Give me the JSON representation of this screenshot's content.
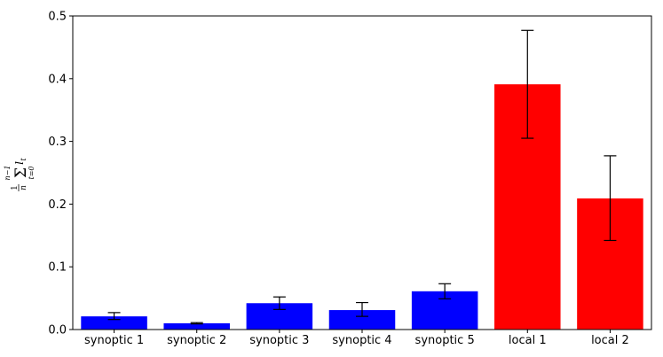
{
  "chart_data": {
    "type": "bar",
    "categories": [
      "synoptic 1",
      "synoptic 2",
      "synoptic 3",
      "synoptic 4",
      "synoptic 5",
      "local 1",
      "local 2"
    ],
    "values": [
      0.021,
      0.01,
      0.042,
      0.031,
      0.061,
      0.391,
      0.209
    ],
    "error_low": [
      0.016,
      0.009,
      0.032,
      0.021,
      0.049,
      0.305,
      0.142
    ],
    "error_high": [
      0.027,
      0.011,
      0.052,
      0.043,
      0.073,
      0.477,
      0.277
    ],
    "colors": [
      "#0000ff",
      "#0000ff",
      "#0000ff",
      "#0000ff",
      "#0000ff",
      "#ff0000",
      "#ff0000"
    ],
    "ylim": [
      0,
      0.5
    ],
    "yticks": [
      "0.0",
      "0.1",
      "0.2",
      "0.3",
      "0.4",
      "0.5"
    ],
    "ylabel": "1/n Σ_{t=0}^{n−1} l_t",
    "grid": false,
    "title": "",
    "xlabel": ""
  }
}
